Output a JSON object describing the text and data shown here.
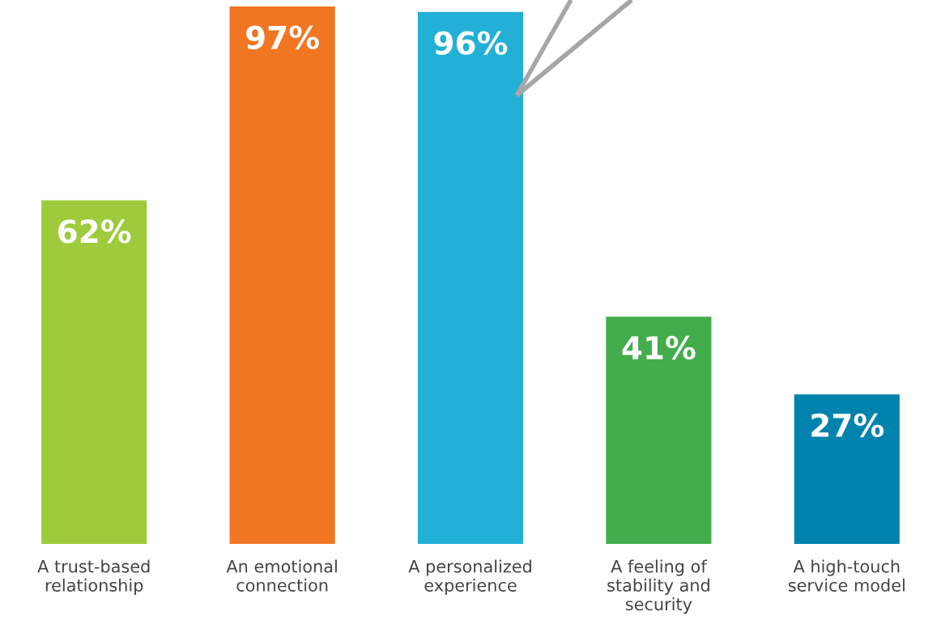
{
  "chart_data": {
    "type": "bar",
    "categories": [
      "A trust-based\nrelationship",
      "An emotional\nconnection",
      "A personalized\nexperience",
      "A feeling of\nstability and\nsecurity",
      "A high-touch\nservice model"
    ],
    "values": [
      62,
      97,
      96,
      41,
      27
    ],
    "value_labels": [
      "62%",
      "97%",
      "96%",
      "41%",
      "27%"
    ],
    "colors": [
      "#9dcb3b",
      "#f07622",
      "#22b0d6",
      "#43ad4c",
      "#0083ad"
    ],
    "grid": false,
    "legend": false
  }
}
